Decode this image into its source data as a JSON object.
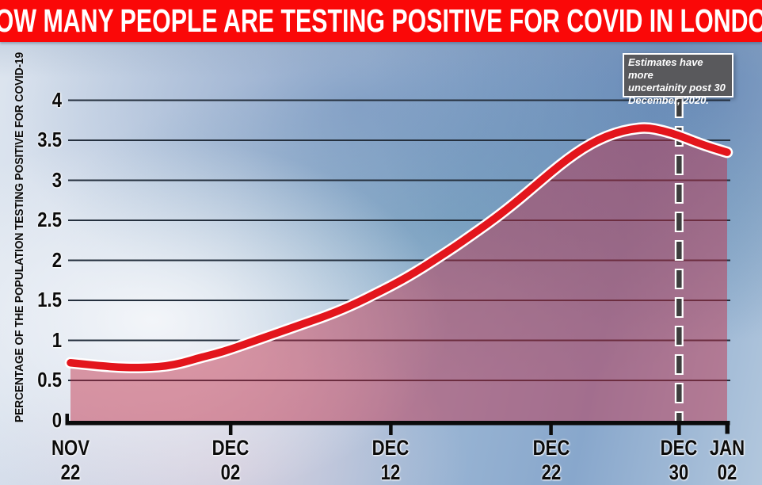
{
  "title": "HOW MANY PEOPLE ARE TESTING POSITIVE FOR COVID IN LONDON",
  "annotation": {
    "line1": "Estimates have more",
    "line2": "uncertainity post 30",
    "line3": "December, 2020."
  },
  "chart_data": {
    "type": "area",
    "ylabel": "PERCENTAGE OF THE POPULATION TESTING POSITIVE FOR COVID-19",
    "xlabel": "",
    "ylim": [
      0,
      4
    ],
    "grid": true,
    "legend": "none",
    "y_ticks": [
      {
        "label": "0",
        "value": 0
      },
      {
        "label": "0.5",
        "value": 0.5
      },
      {
        "label": "1",
        "value": 1
      },
      {
        "label": "1.5",
        "value": 1.5
      },
      {
        "label": "2",
        "value": 2
      },
      {
        "label": "2.5",
        "value": 2.5
      },
      {
        "label": "3",
        "value": 3
      },
      {
        "label": "3.5",
        "value": 3.5
      },
      {
        "label": "4",
        "value": 4
      }
    ],
    "x_ticks": [
      {
        "month": "NOV",
        "day": "22",
        "offset": 0
      },
      {
        "month": "DEC",
        "day": "02",
        "offset": 10
      },
      {
        "month": "DEC",
        "day": "12",
        "offset": 20
      },
      {
        "month": "DEC",
        "day": "22",
        "offset": 30
      },
      {
        "month": "DEC",
        "day": "30",
        "offset": 38
      },
      {
        "month": "JAN",
        "day": "02",
        "offset": 41
      }
    ],
    "x_days_from_start": [
      0,
      1,
      2,
      3,
      4,
      5,
      6,
      7,
      8,
      9,
      10,
      11,
      12,
      13,
      14,
      15,
      16,
      17,
      18,
      19,
      20,
      21,
      22,
      23,
      24,
      25,
      26,
      27,
      28,
      29,
      30,
      31,
      32,
      33,
      34,
      35,
      36,
      37,
      38,
      39,
      40,
      41
    ],
    "values": [
      0.72,
      0.7,
      0.68,
      0.665,
      0.66,
      0.665,
      0.68,
      0.72,
      0.78,
      0.83,
      0.89,
      0.96,
      1.03,
      1.1,
      1.17,
      1.24,
      1.31,
      1.39,
      1.48,
      1.58,
      1.68,
      1.79,
      1.91,
      2.04,
      2.17,
      2.31,
      2.45,
      2.6,
      2.76,
      2.93,
      3.1,
      3.26,
      3.4,
      3.51,
      3.59,
      3.64,
      3.66,
      3.62,
      3.56,
      3.48,
      3.41,
      3.35
    ],
    "uncertainty_marker_day": 38,
    "colors": {
      "banner_bg": "#fa0808",
      "line": "#e3151c",
      "line_casing": "#ffffff",
      "fill": "rgba(196,42,66,0.45)",
      "grid": "#25303e",
      "axis": "#0b0b0b",
      "dashed": "#3d3d3d",
      "dashed_casing": "#ffffff",
      "annotation_bg": "#59595c",
      "annotation_border": "#ffffff",
      "label_color": "#0b0b0b"
    }
  }
}
